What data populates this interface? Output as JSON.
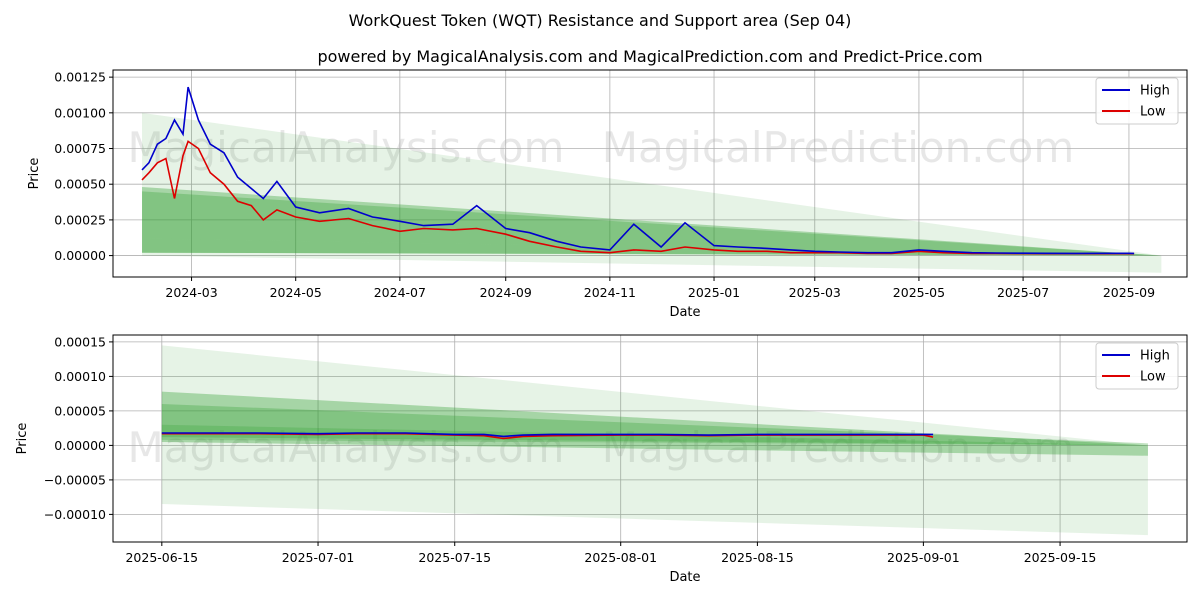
{
  "title": "WorkQuest Token (WQT) Resistance and Support area (Sep 04)",
  "subtitle": "powered by MagicalAnalysis.com and MagicalPrediction.com and Predict-Price.com",
  "watermarks": [
    "MagicalAnalysis.com",
    "MagicalPrediction.com"
  ],
  "colors": {
    "high": "#0000cc",
    "low": "#dd0000",
    "band": "#2e9e2e",
    "grid": "#b0b0b0"
  },
  "chart_data": [
    {
      "type": "line",
      "xlabel": "Date",
      "ylabel": "Price",
      "ylim": [
        -0.00015,
        0.0013
      ],
      "xlim": [
        "2024-01-15",
        "2025-10-05"
      ],
      "xticks": [
        "2024-03",
        "2024-05",
        "2024-07",
        "2024-09",
        "2024-11",
        "2025-01",
        "2025-03",
        "2025-05",
        "2025-07",
        "2025-09"
      ],
      "yticks": [
        "0.00000",
        "0.00025",
        "0.00050",
        "0.00075",
        "0.00100",
        "0.00125"
      ],
      "grid": true,
      "legend": {
        "position": "top-right",
        "entries": [
          "High",
          "Low"
        ]
      },
      "x": [
        "2024-02-01",
        "2024-02-05",
        "2024-02-10",
        "2024-02-15",
        "2024-02-20",
        "2024-02-25",
        "2024-02-28",
        "2024-03-05",
        "2024-03-12",
        "2024-03-20",
        "2024-03-28",
        "2024-04-05",
        "2024-04-12",
        "2024-04-20",
        "2024-05-01",
        "2024-05-15",
        "2024-06-01",
        "2024-06-15",
        "2024-07-01",
        "2024-07-15",
        "2024-08-01",
        "2024-08-15",
        "2024-09-01",
        "2024-09-15",
        "2024-10-01",
        "2024-10-15",
        "2024-11-01",
        "2024-11-15",
        "2024-12-01",
        "2024-12-15",
        "2025-01-01",
        "2025-01-15",
        "2025-02-01",
        "2025-02-15",
        "2025-03-01",
        "2025-03-15",
        "2025-04-01",
        "2025-04-15",
        "2025-05-01",
        "2025-05-15",
        "2025-06-01",
        "2025-06-15",
        "2025-07-01",
        "2025-07-15",
        "2025-08-01",
        "2025-08-15",
        "2025-09-01",
        "2025-09-04"
      ],
      "series": [
        {
          "name": "High",
          "values": [
            0.0006,
            0.00065,
            0.00078,
            0.00082,
            0.00095,
            0.00085,
            0.00118,
            0.00095,
            0.00078,
            0.00072,
            0.00055,
            0.00047,
            0.0004,
            0.00052,
            0.00034,
            0.0003,
            0.00033,
            0.00027,
            0.00024,
            0.00021,
            0.00022,
            0.00035,
            0.00019,
            0.00016,
            0.0001,
            6e-05,
            4e-05,
            0.00022,
            6e-05,
            0.00023,
            7e-05,
            6e-05,
            5e-05,
            4e-05,
            3e-05,
            2.5e-05,
            2e-05,
            2e-05,
            4e-05,
            3e-05,
            2e-05,
            1.8e-05,
            1.7e-05,
            1.6e-05,
            1.5e-05,
            1.6e-05,
            1.6e-05,
            1.5e-05
          ]
        },
        {
          "name": "Low",
          "values": [
            0.00053,
            0.00058,
            0.00065,
            0.00068,
            0.0004,
            0.0007,
            0.0008,
            0.00075,
            0.00058,
            0.0005,
            0.00038,
            0.00035,
            0.00025,
            0.00032,
            0.00027,
            0.00024,
            0.00026,
            0.00021,
            0.00017,
            0.00019,
            0.00018,
            0.00019,
            0.00015,
            0.0001,
            6e-05,
            3e-05,
            2e-05,
            4e-05,
            3e-05,
            6e-05,
            4e-05,
            3e-05,
            3e-05,
            2e-05,
            2e-05,
            2e-05,
            1.5e-05,
            1.5e-05,
            3e-05,
            2e-05,
            1.5e-05,
            1.5e-05,
            1.4e-05,
            1.3e-05,
            1.3e-05,
            1.3e-05,
            1.4e-05,
            1.3e-05
          ]
        }
      ],
      "bands": [
        {
          "x": [
            "2024-02-01",
            "2025-09-20"
          ],
          "upper": [
            0.001,
            0.0
          ],
          "lower": [
            0.0,
            -0.00012
          ],
          "opacity": 0.12
        },
        {
          "x": [
            "2024-02-01",
            "2025-09-20"
          ],
          "upper": [
            0.00048,
            0.0
          ],
          "lower": [
            2e-05,
            0.0
          ],
          "opacity": 0.35
        },
        {
          "x": [
            "2024-02-01",
            "2025-09-20"
          ],
          "upper": [
            0.00045,
            0.0
          ],
          "lower": [
            0.00012,
            0.0
          ],
          "opacity": 0.3
        },
        {
          "x": [
            "2024-02-01",
            "2025-09-20"
          ],
          "upper": [
            0.00012,
            0.0
          ],
          "lower": [
            2e-05,
            0.0
          ],
          "opacity": 0.3
        }
      ]
    },
    {
      "type": "line",
      "xlabel": "Date",
      "ylabel": "Price",
      "ylim": [
        -0.00014,
        0.00016
      ],
      "xlim": [
        "2025-06-10",
        "2025-09-28"
      ],
      "xticks": [
        "2025-06-15",
        "2025-07-01",
        "2025-07-15",
        "2025-08-01",
        "2025-08-15",
        "2025-09-01",
        "2025-09-15"
      ],
      "yticks": [
        "−0.00010",
        "−0.00005",
        "0.00000",
        "0.00005",
        "0.00010",
        "0.00015"
      ],
      "grid": true,
      "legend": {
        "position": "top-right",
        "entries": [
          "High",
          "Low"
        ]
      },
      "x": [
        "2025-06-15",
        "2025-06-20",
        "2025-06-25",
        "2025-07-01",
        "2025-07-05",
        "2025-07-10",
        "2025-07-15",
        "2025-07-18",
        "2025-07-20",
        "2025-07-22",
        "2025-07-25",
        "2025-08-01",
        "2025-08-05",
        "2025-08-10",
        "2025-08-15",
        "2025-08-20",
        "2025-08-25",
        "2025-08-30",
        "2025-09-01",
        "2025-09-02"
      ],
      "series": [
        {
          "name": "High",
          "values": [
            1.8e-05,
            1.8e-05,
            1.8e-05,
            1.7e-05,
            1.8e-05,
            1.8e-05,
            1.6e-05,
            1.6e-05,
            1.3e-05,
            1.5e-05,
            1.6e-05,
            1.6e-05,
            1.6e-05,
            1.5e-05,
            1.6e-05,
            1.6e-05,
            1.6e-05,
            1.6e-05,
            1.6e-05,
            1.6e-05
          ]
        },
        {
          "name": "Low",
          "values": [
            1.7e-05,
            1.7e-05,
            1.7e-05,
            1.6e-05,
            1.7e-05,
            1.7e-05,
            1.5e-05,
            1.4e-05,
            1e-05,
            1.3e-05,
            1.4e-05,
            1.5e-05,
            1.5e-05,
            1.4e-05,
            1.5e-05,
            1.5e-05,
            1.5e-05,
            1.5e-05,
            1.5e-05,
            1.2e-05
          ]
        }
      ],
      "bands": [
        {
          "x": [
            "2025-06-15",
            "2025-09-24"
          ],
          "upper": [
            0.000145,
            0.0
          ],
          "lower": [
            -8.5e-05,
            -0.00013
          ],
          "opacity": 0.12
        },
        {
          "x": [
            "2025-06-15",
            "2025-09-24"
          ],
          "upper": [
            7.8e-05,
            0.0
          ],
          "lower": [
            5e-06,
            -1.5e-05
          ],
          "opacity": 0.35
        },
        {
          "x": [
            "2025-06-15",
            "2025-09-24"
          ],
          "upper": [
            6e-05,
            3e-06
          ],
          "lower": [
            1.2e-05,
            0.0
          ],
          "opacity": 0.3
        },
        {
          "x": [
            "2025-06-15",
            "2025-09-24"
          ],
          "upper": [
            3e-05,
            0.0
          ],
          "lower": [
            8e-06,
            0.0
          ],
          "opacity": 0.25
        }
      ]
    }
  ]
}
